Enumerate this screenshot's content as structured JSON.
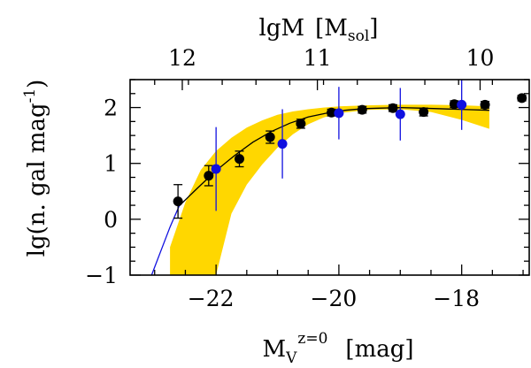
{
  "chart_data": {
    "type": "scatter",
    "title": "",
    "xlabel_main": "M",
    "xlabel_sub": "V",
    "xlabel_sup": "z=0",
    "xlabel_unit": "[mag]",
    "ylabel_main": "lg(n. gal mag",
    "ylabel_sup": "-1",
    "ylabel_close": ")",
    "top_xlabel_main": "lgM",
    "top_xlabel_unit_open": "[M",
    "top_xlabel_unit_sub": "sol",
    "top_xlabel_unit_close": "]",
    "xlim": [
      -23.4,
      -16.9
    ],
    "ylim": [
      -1,
      2.5
    ],
    "x_ticks": [
      -22,
      -20,
      -18
    ],
    "x_tick_labels": [
      "−22",
      "−20",
      "−18"
    ],
    "y_ticks": [
      -1,
      0,
      1,
      2
    ],
    "y_tick_labels": [
      "−1",
      "0",
      "1",
      "2"
    ],
    "top_ticks": [
      {
        "label": "12",
        "x": -22.55
      },
      {
        "label": "11",
        "x": -20.35
      },
      {
        "label": "10",
        "x": -17.7
      }
    ],
    "series": [
      {
        "name": "black points",
        "color": "#000000",
        "points": [
          {
            "x": -22.62,
            "y": 0.32,
            "err": 0.3
          },
          {
            "x": -22.12,
            "y": 0.78,
            "err": 0.18
          },
          {
            "x": -21.62,
            "y": 1.08,
            "err": 0.14
          },
          {
            "x": -21.12,
            "y": 1.47,
            "err": 0.11
          },
          {
            "x": -20.62,
            "y": 1.71,
            "err": 0.08
          },
          {
            "x": -20.12,
            "y": 1.91,
            "err": 0.06
          },
          {
            "x": -19.62,
            "y": 1.96,
            "err": 0.06
          },
          {
            "x": -19.12,
            "y": 1.99,
            "err": 0.06
          },
          {
            "x": -18.62,
            "y": 1.92,
            "err": 0.07
          },
          {
            "x": -18.12,
            "y": 2.06,
            "err": 0.06
          },
          {
            "x": -17.62,
            "y": 2.05,
            "err": 0.06
          },
          {
            "x": -17.02,
            "y": 2.17,
            "err": 0.05
          }
        ]
      },
      {
        "name": "blue points",
        "color": "#1010e0",
        "points": [
          {
            "x": -22.0,
            "y": 0.9,
            "err": 0.75
          },
          {
            "x": -20.92,
            "y": 1.35,
            "err": 0.62
          },
          {
            "x": -20.0,
            "y": 1.9,
            "err": 0.47
          },
          {
            "x": -19.0,
            "y": 1.88,
            "err": 0.47
          },
          {
            "x": -18.0,
            "y": 2.05,
            "err": 0.45
          }
        ]
      }
    ],
    "fit_curve": {
      "name": "fit",
      "color": "#000000",
      "x": [
        -22.6,
        -22.3,
        -22.0,
        -21.7,
        -21.4,
        -21.1,
        -20.8,
        -20.5,
        -20.2,
        -19.9,
        -19.6,
        -19.3,
        -19.0,
        -18.7,
        -18.4,
        -18.1,
        -17.8,
        -17.55
      ],
      "y": [
        0.24,
        0.56,
        0.87,
        1.14,
        1.38,
        1.57,
        1.72,
        1.83,
        1.9,
        1.95,
        1.98,
        1.99,
        2.0,
        1.99,
        1.98,
        1.97,
        1.96,
        1.95
      ]
    },
    "fit_extension": {
      "name": "fit extension",
      "color": "#1010e0",
      "x": [
        -23.05,
        -22.9,
        -22.75,
        -22.6
      ],
      "y": [
        -1.0,
        -0.57,
        -0.14,
        0.24
      ]
    },
    "band": {
      "name": "uncertainty band",
      "color": "#ffd700",
      "x": [
        -22.75,
        -22.5,
        -22.25,
        -22.0,
        -21.75,
        -21.5,
        -21.25,
        -21.0,
        -20.75,
        -20.5,
        -20.25,
        -20.0,
        -19.5,
        -19.0,
        -18.5,
        -18.0,
        -17.55
      ],
      "upper": [
        -0.5,
        0.3,
        0.88,
        1.22,
        1.46,
        1.64,
        1.77,
        1.87,
        1.93,
        1.97,
        2.0,
        2.02,
        2.04,
        2.05,
        2.05,
        2.04,
        2.02
      ],
      "lower": [
        -1.0,
        -1.0,
        -1.0,
        -1.0,
        0.1,
        0.62,
        0.98,
        1.28,
        1.52,
        1.7,
        1.82,
        1.9,
        1.96,
        1.97,
        1.92,
        1.78,
        1.62
      ]
    }
  }
}
